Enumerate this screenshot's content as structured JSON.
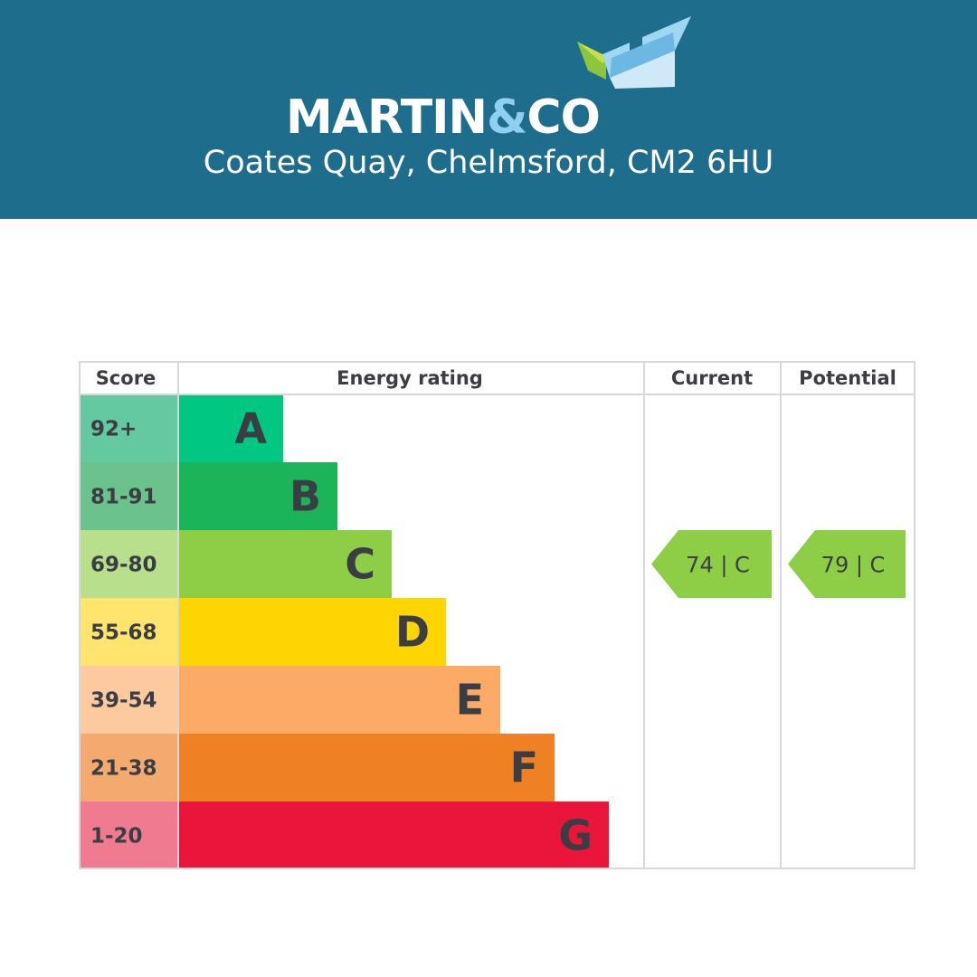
{
  "header": {
    "brand": "MARTIN",
    "brand_amp": "&",
    "brand_suffix": "CO",
    "address": "Coates Quay, Chelmsford, CM2 6HU",
    "background_color": "#1f6d8c",
    "logo_icon": "house-roof-icon"
  },
  "chart_data": {
    "type": "table",
    "columns": [
      "Score",
      "Energy rating",
      "Current",
      "Potential"
    ],
    "bands": [
      {
        "letter": "A",
        "score": "92+",
        "color": "#00c781",
        "score_color": "#64c8a1"
      },
      {
        "letter": "B",
        "score": "81-91",
        "color": "#1cb459",
        "score_color": "#6cc28c"
      },
      {
        "letter": "C",
        "score": "69-80",
        "color": "#8dce46",
        "score_color": "#b8df8c"
      },
      {
        "letter": "D",
        "score": "55-68",
        "color": "#ffd500",
        "score_color": "#ffe56e"
      },
      {
        "letter": "E",
        "score": "39-54",
        "color": "#fcaa65",
        "score_color": "#fdc99e"
      },
      {
        "letter": "F",
        "score": "21-38",
        "color": "#ef8023",
        "score_color": "#f4aa6e"
      },
      {
        "letter": "G",
        "score": "1-20",
        "color": "#e9153b",
        "score_color": "#f07b91"
      }
    ],
    "current": {
      "value": 74,
      "band": "C",
      "label": "74 | C",
      "color": "#8dce46"
    },
    "potential": {
      "value": 79,
      "band": "C",
      "label": "79 | C",
      "color": "#8dce46"
    }
  }
}
